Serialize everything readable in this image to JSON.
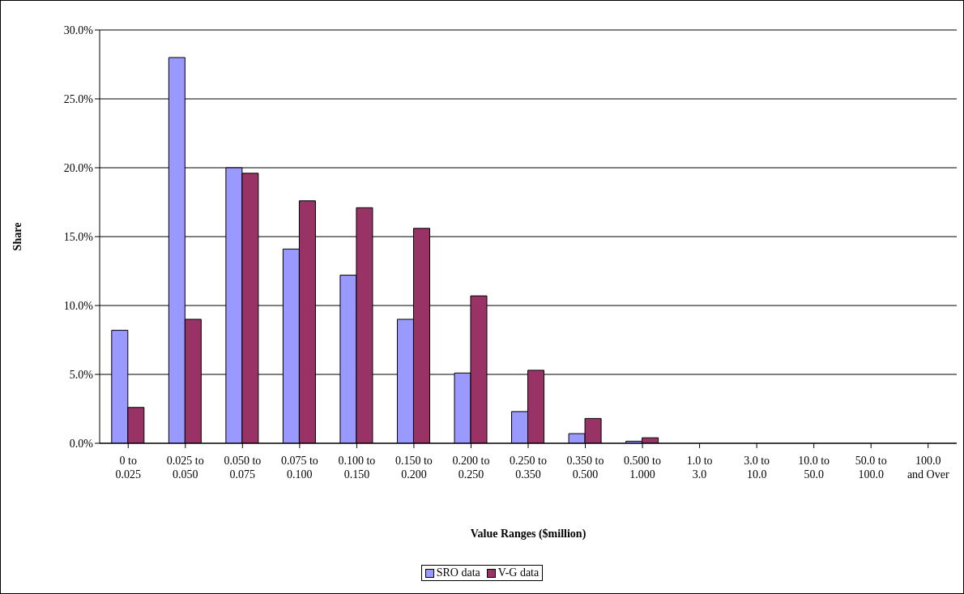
{
  "chart_data": {
    "type": "bar",
    "xlabel": "Value Ranges ($million)",
    "ylabel": "Share",
    "categories": [
      "0 to 0.025",
      "0.025 to 0.050",
      "0.050 to 0.075",
      "0.075 to 0.100",
      "0.100 to 0.150",
      "0.150 to 0.200",
      "0.200 to 0.250",
      "0.250 to 0.350",
      "0.350 to 0.500",
      "0.500 to 1.000",
      "1.0 to 3.0",
      "3.0 to 10.0",
      "10.0 to 50.0",
      "50.0 to 100.0",
      "100.0 and Over"
    ],
    "series": [
      {
        "name": "SRO data",
        "color": "#9999ff",
        "values": [
          8.2,
          28.0,
          20.0,
          14.1,
          12.2,
          9.0,
          5.1,
          2.3,
          0.7,
          0.15,
          0,
          0,
          0,
          0,
          0
        ]
      },
      {
        "name": "V-G data",
        "color": "#993366",
        "values": [
          2.6,
          9.0,
          19.6,
          17.6,
          17.1,
          15.6,
          10.7,
          5.3,
          1.8,
          0.4,
          0,
          0,
          0,
          0,
          0
        ]
      }
    ],
    "ylim": [
      0,
      30
    ],
    "yticks": [
      {
        "value": 0,
        "label": "0.0%"
      },
      {
        "value": 5,
        "label": "5.0%"
      },
      {
        "value": 10,
        "label": "10.0%"
      },
      {
        "value": 15,
        "label": "15.0%"
      },
      {
        "value": 20,
        "label": "20.0%"
      },
      {
        "value": 25,
        "label": "25.0%"
      },
      {
        "value": 30,
        "label": "30.0%"
      }
    ],
    "grid": "y",
    "legend": "bottom"
  }
}
